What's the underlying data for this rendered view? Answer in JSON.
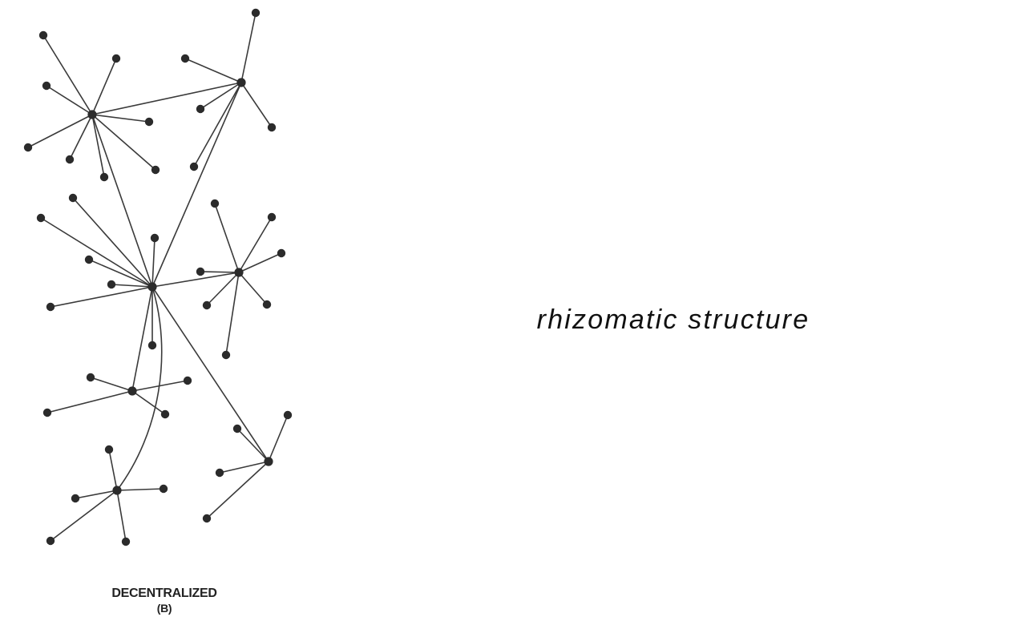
{
  "heading": "rhizomatic structure",
  "diagram": {
    "caption": "DECENTRALIZED",
    "sublabel": "(B)",
    "colors": {
      "node": "#2b2b2b",
      "edge": "#3a3a3a",
      "background": "#ffffff"
    }
  }
}
